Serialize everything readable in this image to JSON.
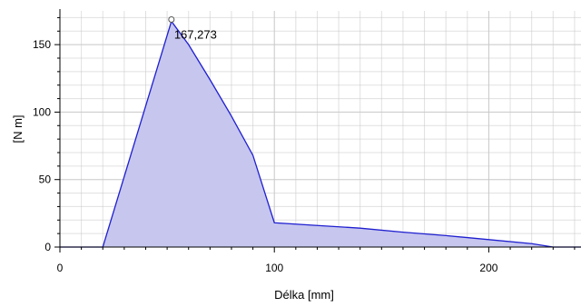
{
  "chart_data": {
    "type": "area",
    "title": "",
    "xlabel": "Délka [mm]",
    "ylabel": "[N m]",
    "xlim": [
      0,
      243
    ],
    "ylim": [
      0,
      175
    ],
    "xticks": [
      0,
      100,
      200
    ],
    "yticks": [
      0,
      50,
      100,
      150
    ],
    "grid": true,
    "legend": "none",
    "series": [
      {
        "x": [
          0,
          20,
          52,
          60,
          70,
          80,
          90,
          100,
          120,
          140,
          160,
          180,
          200,
          220,
          230,
          243
        ],
        "y": [
          0,
          0,
          167.273,
          150,
          124,
          97,
          68,
          18,
          16,
          14,
          11,
          8.5,
          5.5,
          2.5,
          0,
          0
        ]
      }
    ],
    "annotation": {
      "x": 52,
      "y": 167.273,
      "text": "167,273"
    },
    "colors": {
      "line": "#1f1fd0",
      "fill": "#c6c6ef",
      "grid": "#c8c8c8",
      "axis": "#000000"
    }
  }
}
